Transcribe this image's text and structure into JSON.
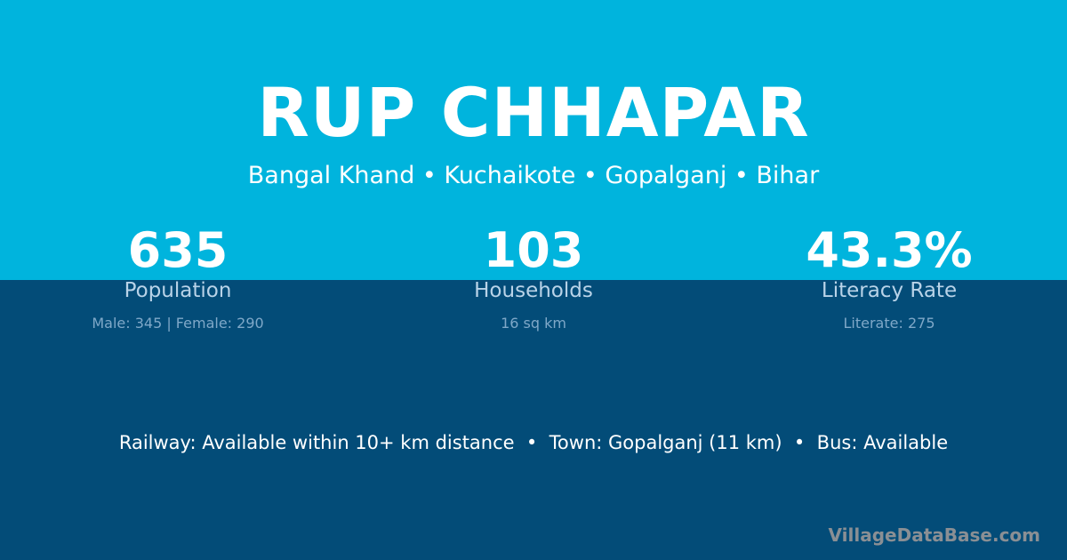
{
  "title": "RUP CHHAPAR",
  "subtitle": "Bangal Khand • Kuchaikote • Gopalganj • Bihar",
  "stats": [
    {
      "value": "635",
      "label": "Population",
      "detail": "Male: 345 | Female: 290"
    },
    {
      "value": "103",
      "label": "Households",
      "detail": "16 sq km"
    },
    {
      "value": "43.3%",
      "label": "Literacy Rate",
      "detail": "Literate: 275"
    }
  ],
  "footer": "Railway: Available within 10+ km distance  •  Town: Gopalganj (11 km)  •  Bus: Available",
  "brand": "VillageDataBase.com",
  "colors": {
    "top": "#00b4dd",
    "bottom": "#034c78"
  }
}
